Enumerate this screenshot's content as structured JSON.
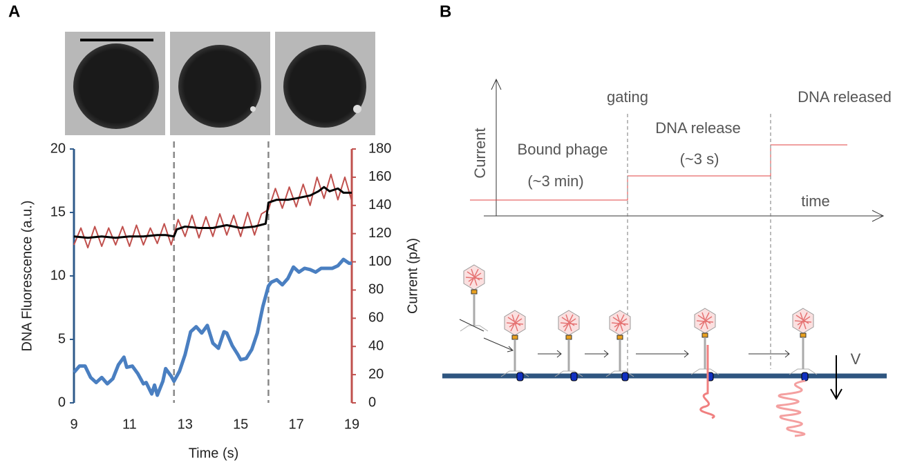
{
  "chart_data": {
    "type": "line",
    "panel_label": "A",
    "xlabel": "Time (s)",
    "ylabel": "DNA Fluorescence (a.u.)",
    "y2label": "Current (pA)",
    "xlim": [
      9,
      19
    ],
    "xticks": [
      9,
      11,
      13,
      15,
      17,
      19
    ],
    "ylim": [
      0,
      20
    ],
    "yticks": [
      0,
      5,
      10,
      15,
      20
    ],
    "y2lim": [
      0,
      180
    ],
    "y2ticks": [
      0,
      20,
      40,
      60,
      80,
      100,
      120,
      140,
      160,
      180
    ],
    "vlines": [
      12.6,
      16
    ],
    "series": [
      {
        "color": "#c0504d",
        "axis": "y2",
        "x": [
          9,
          9.25,
          9.5,
          9.75,
          10,
          10.25,
          10.5,
          10.75,
          11,
          11.25,
          11.5,
          11.75,
          12,
          12.25,
          12.5,
          12.75,
          13,
          13.25,
          13.5,
          13.75,
          14,
          14.25,
          14.5,
          14.75,
          15,
          15.25,
          15.5,
          15.75,
          16,
          16.25,
          16.5,
          16.75,
          17,
          17.25,
          17.5,
          17.75,
          18,
          18.25,
          18.5,
          18.75,
          19
        ],
        "values": [
          112,
          124,
          110,
          125,
          111,
          124,
          112,
          125,
          111,
          126,
          112,
          124,
          113,
          127,
          112,
          130,
          118,
          133,
          117,
          132,
          118,
          134,
          119,
          133,
          118,
          135,
          119,
          134,
          137,
          152,
          138,
          153,
          139,
          155,
          140,
          160,
          145,
          162,
          144,
          160,
          143
        ]
      },
      {
        "color": "#000000",
        "axis": "y2",
        "x": [
          9,
          9.5,
          10,
          10.5,
          11,
          11.5,
          12,
          12.3,
          12.6,
          12.7,
          13,
          13.5,
          14,
          14.5,
          15,
          15.5,
          15.9,
          16,
          16.3,
          16.7,
          17,
          17.5,
          17.8,
          18,
          18.2,
          18.5,
          18.7,
          19
        ],
        "values": [
          118,
          117,
          118,
          117,
          118,
          118,
          119,
          119,
          118,
          123,
          125,
          124,
          124,
          126,
          124,
          125,
          127,
          142,
          144,
          144,
          145,
          147,
          150,
          153,
          150,
          152,
          149,
          149
        ]
      },
      {
        "color": "#4a7fc1",
        "x": [
          9,
          9.2,
          9.4,
          9.6,
          9.8,
          10,
          10.2,
          10.4,
          10.6,
          10.8,
          10.9,
          11.1,
          11.3,
          11.5,
          11.6,
          11.8,
          11.9,
          12,
          12.2,
          12.3,
          12.5,
          12.6,
          12.8,
          13,
          13.2,
          13.4,
          13.6,
          13.8,
          14,
          14.2,
          14.4,
          14.5,
          14.7,
          14.9,
          15,
          15.2,
          15.4,
          15.6,
          15.8,
          16,
          16.1,
          16.3,
          16.5,
          16.7,
          16.9,
          17.1,
          17.3,
          17.5,
          17.7,
          17.9,
          18.1,
          18.3,
          18.5,
          18.7,
          18.9,
          19
        ],
        "values": [
          2.4,
          2.9,
          2.9,
          2,
          1.6,
          2,
          1.5,
          1.9,
          3,
          3.6,
          2.8,
          2.9,
          2.3,
          1.5,
          1.6,
          0.7,
          1.4,
          0.6,
          1.7,
          2.7,
          2.1,
          1.7,
          2.5,
          3.8,
          5.6,
          6,
          5.5,
          6.1,
          4.7,
          4.3,
          5.6,
          5.5,
          4.5,
          3.8,
          3.4,
          3.5,
          4.2,
          5.5,
          7.6,
          9.2,
          9.5,
          9.7,
          9.3,
          9.8,
          10.7,
          10.3,
          10.6,
          10.5,
          10.3,
          10.6,
          10.6,
          10.6,
          10.8,
          11.3,
          11,
          11
        ]
      }
    ]
  },
  "diagram": {
    "panel_label": "B",
    "y_axis": "Current",
    "x_axis": "time",
    "events": [
      "gating",
      "DNA released"
    ],
    "stages": [
      {
        "label": "Bound phage",
        "duration": "(~3 min)"
      },
      {
        "label": "DNA release",
        "duration": "(~3 s)"
      }
    ],
    "voltage": "V"
  }
}
